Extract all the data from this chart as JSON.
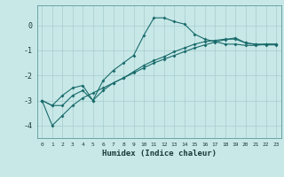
{
  "xlabel": "Humidex (Indice chaleur)",
  "background_color": "#c8e8e8",
  "grid_color": "#a8cccc",
  "line_color": "#1a6b6b",
  "x_values": [
    0,
    1,
    2,
    3,
    4,
    5,
    6,
    7,
    8,
    9,
    10,
    11,
    12,
    13,
    14,
    15,
    16,
    17,
    18,
    19,
    20,
    21,
    22,
    23
  ],
  "line1": [
    -3.0,
    -3.2,
    -2.8,
    -2.5,
    -2.4,
    -3.0,
    -2.2,
    -1.8,
    -1.5,
    -1.2,
    -0.4,
    0.3,
    0.3,
    0.15,
    0.05,
    -0.35,
    -0.55,
    -0.65,
    -0.75,
    -0.75,
    -0.8,
    -0.8,
    -0.75,
    -0.75
  ],
  "line2": [
    -3.0,
    -3.2,
    -3.2,
    -2.8,
    -2.6,
    -3.0,
    -2.6,
    -2.3,
    -2.1,
    -1.85,
    -1.6,
    -1.4,
    -1.25,
    -1.05,
    -0.9,
    -0.75,
    -0.65,
    -0.6,
    -0.55,
    -0.55,
    -0.7,
    -0.75,
    -0.75,
    -0.75
  ],
  "line3": [
    -3.0,
    -4.0,
    -3.6,
    -3.2,
    -2.9,
    -2.7,
    -2.5,
    -2.3,
    -2.1,
    -1.9,
    -1.7,
    -1.5,
    -1.35,
    -1.2,
    -1.05,
    -0.9,
    -0.78,
    -0.67,
    -0.57,
    -0.5,
    -0.7,
    -0.77,
    -0.78,
    -0.78
  ],
  "ylim": [
    -4.5,
    0.8
  ],
  "xlim": [
    -0.5,
    23.5
  ],
  "yticks": [
    0,
    -1,
    -2,
    -3,
    -4
  ],
  "xtick_labels": [
    "0",
    "1",
    "2",
    "3",
    "4",
    "5",
    "6",
    "7",
    "8",
    "9",
    "10",
    "11",
    "12",
    "13",
    "14",
    "15",
    "16",
    "17",
    "18",
    "19",
    "20",
    "21",
    "22",
    "23"
  ]
}
